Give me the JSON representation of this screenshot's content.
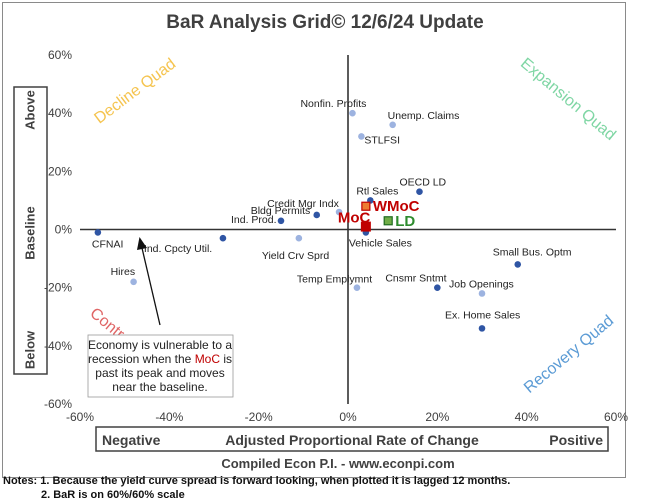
{
  "chart_data": {
    "type": "scatter",
    "title": "BaR Analysis Grid© 12/6/24 Update",
    "xlabel": "Adjusted Proportional Rate of Change",
    "xlabel_left": "Negative",
    "xlabel_right": "Positive",
    "ylabel_parts": [
      "Above",
      "Baseline",
      "Below"
    ],
    "xlim": [
      -60,
      60
    ],
    "ylim": [
      -60,
      60
    ],
    "x_ticks": [
      "-60%",
      "-40%",
      "-20%",
      "0%",
      "20%",
      "40%",
      "60%"
    ],
    "y_ticks": [
      "60%",
      "40%",
      "20%",
      "0%",
      "-20%",
      "-40%",
      "-60%"
    ],
    "grid": false,
    "credit": "Compiled Econ P.I. - www.econpi.com",
    "quadrants": [
      {
        "label": "Decline Quad",
        "color": "#f5c44f"
      },
      {
        "label": "Expansion Quad",
        "color": "#7fd6a4"
      },
      {
        "label": "Contraction Quad",
        "color": "#e06666"
      },
      {
        "label": "Recovery Quad",
        "color": "#5b9bd5"
      }
    ],
    "colors": {
      "point": "#2f55a4",
      "point_light": "#9db3e0",
      "moc": "#c00000",
      "wmoc_fill": "#ed7d31",
      "ld_fill": "#70ad47",
      "ld_text": "#2e8b2e"
    },
    "points": [
      {
        "label": "Nonfin. Profits",
        "x": 1,
        "y": 40,
        "style": "light"
      },
      {
        "label": "Unemp. Claims",
        "x": 10,
        "y": 36,
        "style": "light"
      },
      {
        "label": "STLFSI",
        "x": 3,
        "y": 32,
        "style": "light"
      },
      {
        "label": "OECD LD",
        "x": 16,
        "y": 13,
        "style": "dark"
      },
      {
        "label": "Rtl Sales",
        "x": 5,
        "y": 10,
        "style": "dark"
      },
      {
        "label": "Credit Mgr Indx",
        "x": -2,
        "y": 6,
        "style": "light"
      },
      {
        "label": "Bldg Permits",
        "x": -7,
        "y": 5,
        "style": "dark"
      },
      {
        "label": "Ind. Prod.",
        "x": -15,
        "y": 3,
        "style": "dark"
      },
      {
        "label": "CFNAI",
        "x": -56,
        "y": -1,
        "style": "dark"
      },
      {
        "label": "Ind. Cpcty Util.",
        "x": -28,
        "y": -3,
        "style": "dark"
      },
      {
        "label": "Yield Crv Sprd",
        "x": -11,
        "y": -3,
        "style": "light"
      },
      {
        "label": "Vehicle Sales",
        "x": 4,
        "y": -1,
        "style": "dark"
      },
      {
        "label": "Hires",
        "x": -48,
        "y": -18,
        "style": "light"
      },
      {
        "label": "Small Bus. Optm",
        "x": 38,
        "y": -12,
        "style": "dark"
      },
      {
        "label": "Temp Emplymnt",
        "x": 2,
        "y": -20,
        "style": "light"
      },
      {
        "label": "Cnsmr Sntmt",
        "x": 20,
        "y": -20,
        "style": "dark"
      },
      {
        "label": "Job Openings",
        "x": 30,
        "y": -22,
        "style": "light"
      },
      {
        "label": "Ex. Home Sales",
        "x": 30,
        "y": -34,
        "style": "dark"
      }
    ],
    "highlights": [
      {
        "label": "WMoC",
        "x": 4,
        "y": 8,
        "style": "wmoc"
      },
      {
        "label": "MoC",
        "x": 4,
        "y": 1,
        "style": "moc"
      },
      {
        "label": "LD",
        "x": 9,
        "y": 3,
        "style": "ld"
      }
    ],
    "annotation": {
      "lines": [
        [
          "Economy is vulnerable to a",
          ""
        ],
        [
          "recession when the ",
          "MoC",
          " is"
        ],
        [
          "past its peak and moves",
          ""
        ],
        [
          "near the baseline.",
          ""
        ]
      ]
    }
  },
  "notes": [
    "Notes: 1. Because the yield curve spread is forward looking, when plotted it is lagged 12 months.",
    "2. BaR is on 60%/60% scale"
  ]
}
